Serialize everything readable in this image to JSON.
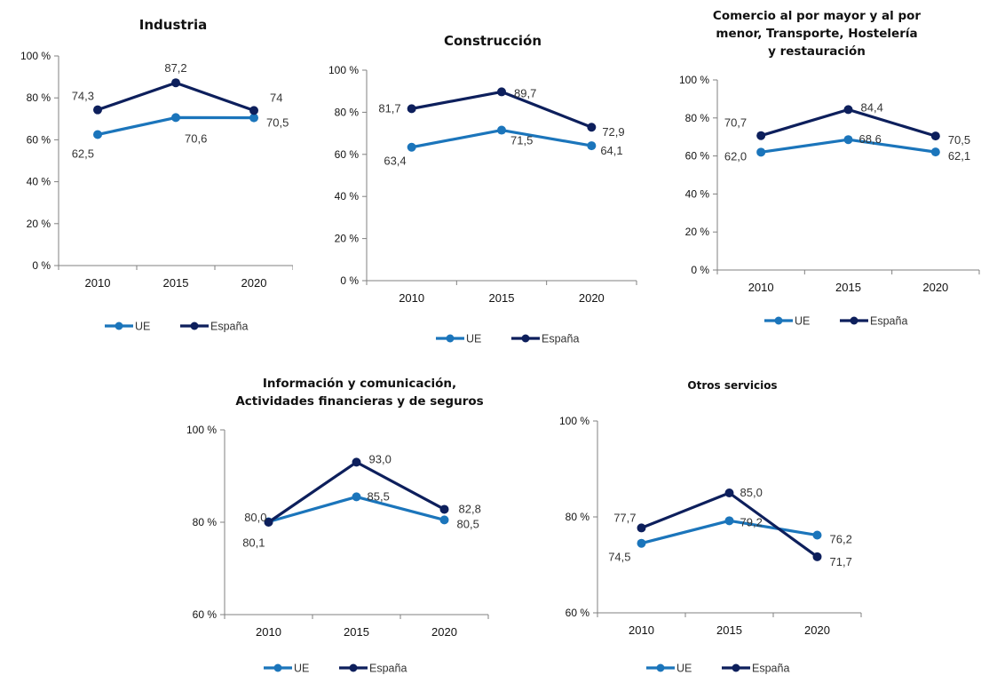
{
  "colors": {
    "ue": "#1b75bb",
    "espana": "#0d1f5c",
    "axis": "#808080"
  },
  "chart_data": [
    {
      "type": "line",
      "title": "Industria",
      "categories": [
        "2010",
        "2015",
        "2020"
      ],
      "ylim": [
        0,
        100
      ],
      "yticks": [
        0,
        20,
        40,
        60,
        80,
        100
      ],
      "ytick_labels": [
        "0 %",
        "20 %",
        "40 %",
        "60 %",
        "80 %",
        "100 %"
      ],
      "legend": "bottom",
      "series": [
        {
          "name": "UE",
          "values": [
            62.5,
            70.6,
            70.5
          ],
          "labels": [
            "62,5",
            "70,6",
            "70,5"
          ]
        },
        {
          "name": "España",
          "values": [
            74.3,
            87.2,
            74
          ],
          "labels": [
            "74,3",
            "87,2",
            "74"
          ]
        }
      ]
    },
    {
      "type": "line",
      "title": "Construcción",
      "categories": [
        "2010",
        "2015",
        "2020"
      ],
      "ylim": [
        0,
        100
      ],
      "yticks": [
        0,
        20,
        40,
        60,
        80,
        100
      ],
      "ytick_labels": [
        "0 %",
        "20 %",
        "40 %",
        "60 %",
        "80 %",
        "100 %"
      ],
      "legend": "bottom",
      "series": [
        {
          "name": "UE",
          "values": [
            63.4,
            71.5,
            64.1
          ],
          "labels": [
            "63,4",
            "71,5",
            "64,1"
          ]
        },
        {
          "name": "España",
          "values": [
            81.7,
            89.7,
            72.9
          ],
          "labels": [
            "81,7",
            "89,7",
            "72,9"
          ]
        }
      ]
    },
    {
      "type": "line",
      "title": "Comercio al por mayor y al por menor, Transporte, Hostelería y restauración",
      "categories": [
        "2010",
        "2015",
        "2020"
      ],
      "ylim": [
        0,
        100
      ],
      "yticks": [
        0,
        20,
        40,
        60,
        80,
        100
      ],
      "ytick_labels": [
        "0 %",
        "20 %",
        "40 %",
        "60 %",
        "80 %",
        "100 %"
      ],
      "legend": "bottom",
      "series": [
        {
          "name": "UE",
          "values": [
            62.0,
            68.6,
            62.1
          ],
          "labels": [
            "62,0",
            "68,6",
            "62,1"
          ]
        },
        {
          "name": "España",
          "values": [
            70.7,
            84.4,
            70.5
          ],
          "labels": [
            "70,7",
            "84,4",
            "70,5"
          ]
        }
      ]
    },
    {
      "type": "line",
      "title": "Información y comunicación, Actividades financieras y de seguros",
      "categories": [
        "2010",
        "2015",
        "2020"
      ],
      "ylim": [
        60,
        100
      ],
      "yticks": [
        60,
        80,
        100
      ],
      "ytick_labels": [
        "60 %",
        "80 %",
        "100 %"
      ],
      "legend": "bottom",
      "series": [
        {
          "name": "UE",
          "values": [
            80.1,
            85.5,
            80.5
          ],
          "labels": [
            "80,1",
            "85,5",
            "80,5"
          ]
        },
        {
          "name": "España",
          "values": [
            80.0,
            93.0,
            82.8
          ],
          "labels": [
            "80,0",
            "93,0",
            "82,8"
          ]
        }
      ]
    },
    {
      "type": "line",
      "title": "Otros servicios",
      "categories": [
        "2010",
        "2015",
        "2020"
      ],
      "ylim": [
        60,
        100
      ],
      "yticks": [
        60,
        80,
        100
      ],
      "ytick_labels": [
        "60 %",
        "80 %",
        "100 %"
      ],
      "legend": "bottom",
      "series": [
        {
          "name": "UE",
          "values": [
            74.5,
            79.2,
            76.2
          ],
          "labels": [
            "74,5",
            "79,2",
            "76,2"
          ]
        },
        {
          "name": "España",
          "values": [
            77.7,
            85.0,
            71.7
          ],
          "labels": [
            "77,7",
            "85,0",
            "71,7"
          ]
        }
      ]
    }
  ]
}
